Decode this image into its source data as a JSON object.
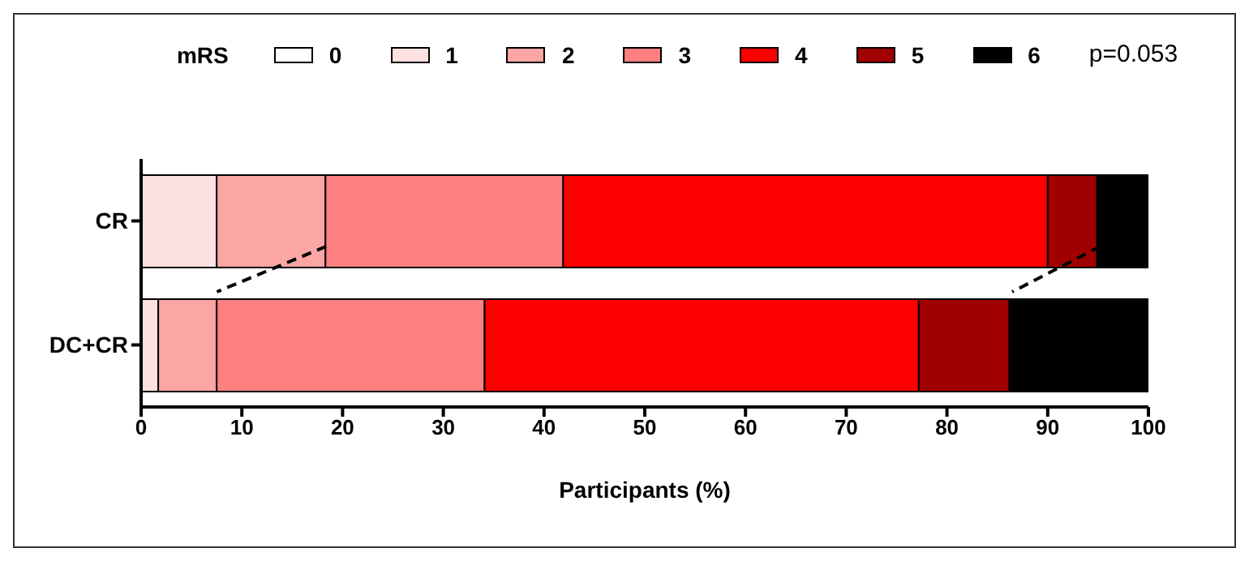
{
  "chart_data": {
    "type": "bar",
    "orientation": "horizontal",
    "stacked": true,
    "categories": [
      "CR",
      "DC+CR"
    ],
    "legend_title": "mRS",
    "legend": "top",
    "xlabel": "Participants (%)",
    "xlim": [
      0,
      100
    ],
    "xticks": [
      0,
      10,
      20,
      30,
      40,
      50,
      60,
      70,
      80,
      90,
      100
    ],
    "annotations": [
      "p=0.053"
    ],
    "series": [
      {
        "name": "0",
        "color": "#ffffff",
        "values": [
          0,
          0
        ]
      },
      {
        "name": "1",
        "color": "#fde0e0",
        "values": [
          7.5,
          1.7
        ]
      },
      {
        "name": "2",
        "color": "#fba5a5",
        "values": [
          10.8,
          5.8
        ]
      },
      {
        "name": "3",
        "color": "#fc8080",
        "values": [
          23.6,
          26.6
        ]
      },
      {
        "name": "4",
        "color": "#fe0000",
        "values": [
          48.1,
          43.1
        ]
      },
      {
        "name": "5",
        "color": "#a00000",
        "values": [
          4.9,
          9.0
        ]
      },
      {
        "name": "6",
        "color": "#000000",
        "values": [
          5.1,
          13.8
        ]
      }
    ]
  }
}
